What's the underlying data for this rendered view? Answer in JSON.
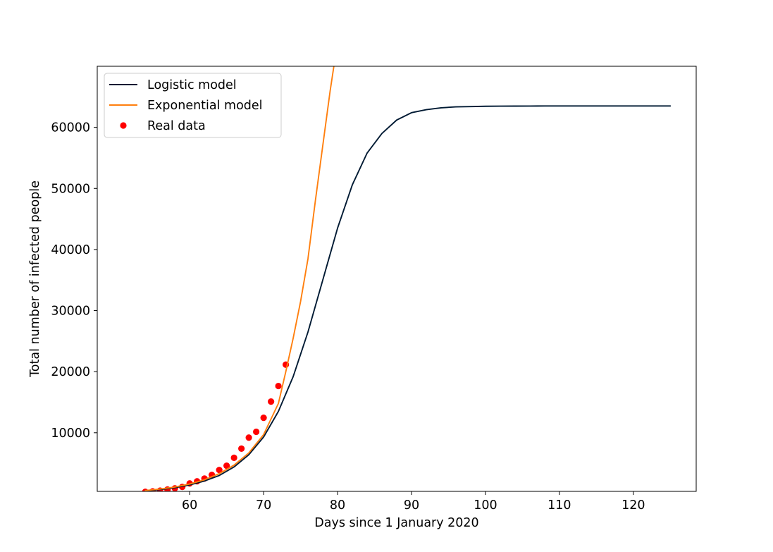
{
  "chart_data": {
    "type": "line",
    "xlabel": "Days since 1 January 2020",
    "ylabel": "Total number of infected people",
    "xlim": [
      47.5,
      128.5
    ],
    "ylim": [
      400,
      70000
    ],
    "x_ticks": [
      60,
      70,
      80,
      90,
      100,
      110,
      120
    ],
    "y_ticks": [
      10000,
      20000,
      30000,
      40000,
      50000,
      60000
    ],
    "grid": false,
    "legend_position": "top-left",
    "series": [
      {
        "name": "Logistic model",
        "kind": "line",
        "color": "#001a33",
        "x": [
          54,
          56,
          58,
          60,
          62,
          64,
          66,
          68,
          70,
          72,
          74,
          76,
          78,
          80,
          82,
          84,
          86,
          88,
          90,
          92,
          94,
          96,
          98,
          100,
          102,
          104,
          106,
          108,
          110,
          112,
          114,
          116,
          118,
          120,
          122,
          124,
          125
        ],
        "y": [
          490,
          700,
          1000,
          1460,
          2100,
          3000,
          4400,
          6400,
          9300,
          13500,
          19200,
          26500,
          35000,
          43500,
          50600,
          55800,
          59000,
          61200,
          62400,
          62900,
          63200,
          63350,
          63400,
          63450,
          63470,
          63480,
          63490,
          63495,
          63500,
          63500,
          63500,
          63500,
          63500,
          63500,
          63500,
          63500,
          63500
        ]
      },
      {
        "name": "Exponential model",
        "kind": "line",
        "color": "#ff7f0e",
        "x": [
          54,
          56,
          58,
          60,
          62,
          64,
          66,
          68,
          70,
          72,
          73,
          74,
          75,
          76,
          77,
          78,
          79,
          79.5
        ],
        "y": [
          540,
          780,
          1120,
          1600,
          2300,
          3300,
          4700,
          6700,
          9700,
          14800,
          20000,
          25500,
          31500,
          38500,
          48000,
          57000,
          66000,
          70000
        ]
      },
      {
        "name": "Real data",
        "kind": "scatter",
        "color": "#ff0000",
        "x": [
          54,
          55,
          56,
          57,
          58,
          59,
          60,
          61,
          62,
          63,
          64,
          65,
          66,
          67,
          68,
          69,
          70,
          71,
          72,
          73
        ],
        "y": [
          330,
          400,
          520,
          700,
          900,
          1130,
          1700,
          2050,
          2500,
          3100,
          3900,
          4600,
          5900,
          7400,
          9200,
          10150,
          12450,
          15100,
          17650,
          21150
        ]
      }
    ]
  }
}
